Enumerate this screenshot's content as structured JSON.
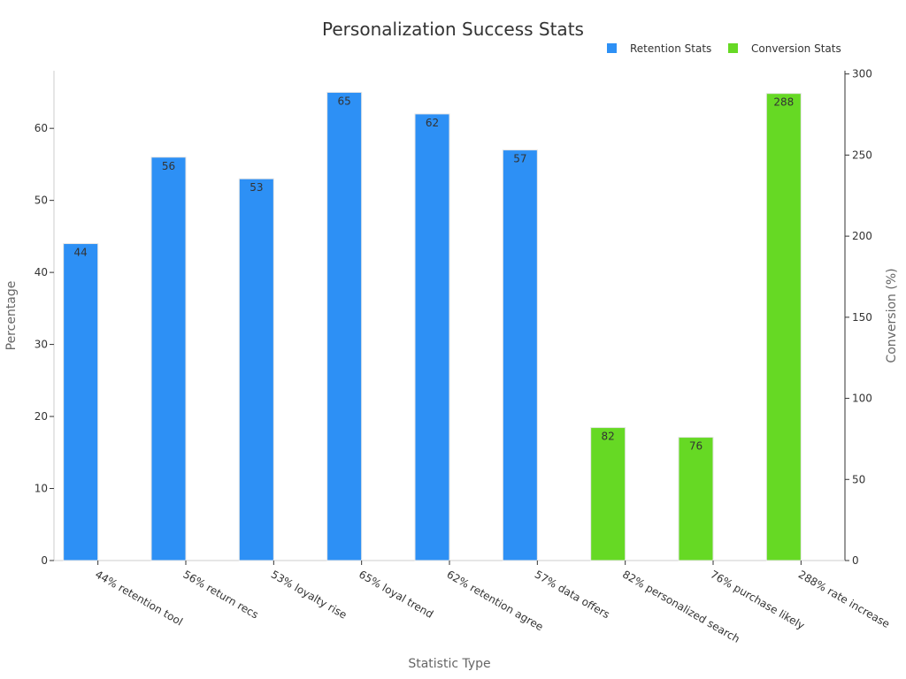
{
  "chart_data": {
    "type": "bar",
    "title": "Personalization Success Stats",
    "xlabel": "Statistic Type",
    "ylabel": "Percentage",
    "y2label": "Conversion (%)",
    "categories": [
      "44% retention tool",
      "56% return recs",
      "53% loyalty rise",
      "65% loyal trend",
      "62% retention agree",
      "57% data offers",
      "82% personalized search",
      "76% purchase likely",
      "288% rate increase"
    ],
    "series": [
      {
        "name": "Retention Stats",
        "color": "#2d90f5",
        "axis": "left",
        "values": [
          44,
          56,
          53,
          65,
          62,
          57,
          null,
          null,
          null
        ]
      },
      {
        "name": "Conversion Stats",
        "color": "#66d924",
        "axis": "right",
        "values": [
          null,
          null,
          null,
          null,
          null,
          null,
          82,
          76,
          288
        ]
      }
    ],
    "ylim": [
      0,
      68
    ],
    "y2lim": [
      0,
      302
    ],
    "yticks": [
      0,
      10,
      20,
      30,
      40,
      50,
      60
    ],
    "y2ticks": [
      0,
      50,
      100,
      150,
      200,
      250,
      300
    ],
    "grid": false,
    "legend_position": "top-right"
  }
}
